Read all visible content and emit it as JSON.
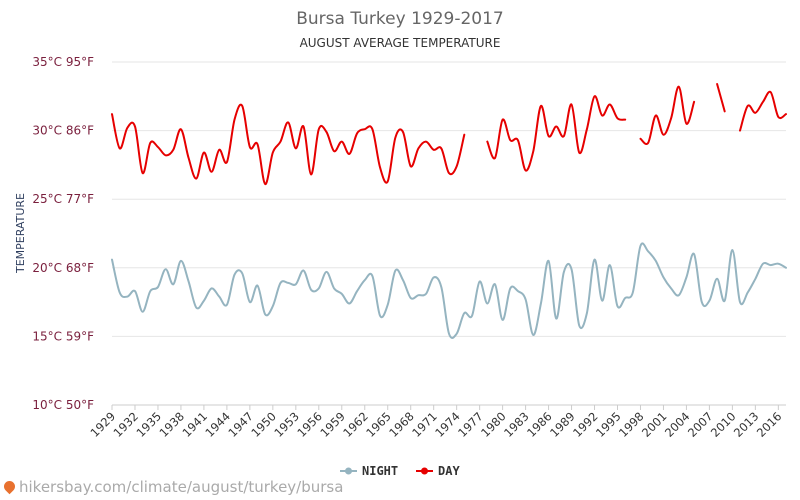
{
  "chart_data": {
    "type": "line",
    "title": "Bursa Turkey 1929-2017",
    "subtitle": "AUGUST AVERAGE TEMPERATURE",
    "ylabel": "TEMPERATURE",
    "ylim": [
      10,
      35
    ],
    "xlim": [
      1929,
      2017
    ],
    "y_ticks": [
      {
        "value": 35,
        "label": "35°C 95°F"
      },
      {
        "value": 30,
        "label": "30°C 86°F"
      },
      {
        "value": 25,
        "label": "25°C 77°F"
      },
      {
        "value": 20,
        "label": "20°C 68°F"
      },
      {
        "value": 15,
        "label": "15°C 59°F"
      },
      {
        "value": 10,
        "label": "10°C 50°F"
      }
    ],
    "x_ticks": [
      1929,
      1932,
      1935,
      1938,
      1941,
      1944,
      1947,
      1950,
      1953,
      1956,
      1959,
      1962,
      1965,
      1968,
      1971,
      1974,
      1977,
      1980,
      1983,
      1986,
      1989,
      1992,
      1995,
      1998,
      2001,
      2004,
      2007,
      2010,
      2013,
      2016
    ],
    "grid": "horizontal",
    "legend_position": "bottom",
    "colors": {
      "night": "#95b4c0",
      "day": "#e60000"
    },
    "series": [
      {
        "name": "NIGHT",
        "color": "#95b4c0",
        "x": [
          1929,
          1930,
          1931,
          1932,
          1933,
          1934,
          1935,
          1936,
          1937,
          1938,
          1939,
          1940,
          1941,
          1942,
          1943,
          1944,
          1945,
          1946,
          1947,
          1948,
          1949,
          1950,
          1951,
          1952,
          1953,
          1954,
          1955,
          1956,
          1957,
          1958,
          1959,
          1960,
          1961,
          1962,
          1963,
          1964,
          1965,
          1966,
          1967,
          1968,
          1969,
          1970,
          1971,
          1972,
          1973,
          1974,
          1975,
          1976,
          1977,
          1978,
          1979,
          1980,
          1981,
          1982,
          1983,
          1984,
          1985,
          1986,
          1987,
          1988,
          1989,
          1990,
          1991,
          1992,
          1993,
          1994,
          1995,
          1996,
          1997,
          1998,
          1999,
          2000,
          2001,
          2002,
          2003,
          2004,
          2005,
          2006,
          2007,
          2008,
          2009,
          2010,
          2011,
          2012,
          2013,
          2014,
          2015,
          2016,
          2017
        ],
        "values": [
          20.6,
          18.2,
          17.9,
          18.3,
          16.8,
          18.3,
          18.6,
          19.9,
          18.8,
          20.5,
          19.0,
          17.1,
          17.6,
          18.5,
          17.9,
          17.3,
          19.5,
          19.6,
          17.5,
          18.7,
          16.6,
          17.2,
          18.9,
          18.9,
          18.8,
          19.8,
          18.4,
          18.5,
          19.7,
          18.5,
          18.1,
          17.4,
          18.3,
          19.1,
          19.4,
          16.5,
          17.3,
          19.8,
          19.1,
          17.8,
          18.0,
          18.1,
          19.3,
          18.6,
          15.2,
          15.2,
          16.7,
          16.5,
          19.0,
          17.4,
          18.8,
          16.2,
          18.5,
          18.3,
          17.7,
          15.1,
          17.4,
          20.5,
          16.3,
          19.7,
          19.9,
          15.8,
          16.7,
          20.6,
          17.6,
          20.2,
          17.2,
          17.8,
          18.2,
          21.6,
          21.2,
          20.5,
          19.3,
          18.5,
          18.0,
          19.3,
          21.0,
          17.5,
          17.6,
          19.2,
          17.6,
          21.3,
          17.5,
          18.2,
          19.2,
          20.3,
          20.2,
          20.3,
          20.0
        ]
      },
      {
        "name": "DAY",
        "color": "#e60000",
        "x": [
          1929,
          1930,
          1931,
          1932,
          1933,
          1934,
          1935,
          1936,
          1937,
          1938,
          1939,
          1940,
          1941,
          1942,
          1943,
          1944,
          1945,
          1946,
          1947,
          1948,
          1949,
          1950,
          1951,
          1952,
          1953,
          1954,
          1955,
          1956,
          1957,
          1958,
          1959,
          1960,
          1961,
          1962,
          1963,
          1964,
          1965,
          1966,
          1967,
          1968,
          1969,
          1970,
          1971,
          1972,
          1973,
          1974,
          1975,
          1976,
          1977,
          1978,
          1979,
          1980,
          1981,
          1982,
          1983,
          1984,
          1985,
          1986,
          1987,
          1988,
          1989,
          1990,
          1991,
          1992,
          1993,
          1994,
          1995,
          1996,
          1997,
          1998,
          1999,
          2000,
          2001,
          2002,
          2003,
          2004,
          2005,
          2006,
          2007,
          2008,
          2009,
          2010,
          2011,
          2012,
          2013,
          2014,
          2015,
          2016,
          2017
        ],
        "values": [
          31.2,
          28.7,
          30.2,
          30.3,
          26.9,
          29.1,
          28.8,
          28.2,
          28.6,
          30.1,
          28.0,
          26.5,
          28.4,
          27.0,
          28.6,
          27.7,
          30.8,
          31.8,
          28.8,
          29.0,
          26.1,
          28.4,
          29.2,
          30.6,
          28.7,
          30.3,
          26.8,
          30.1,
          29.9,
          28.5,
          29.2,
          28.3,
          29.8,
          30.1,
          30.1,
          27.3,
          26.3,
          29.5,
          29.9,
          27.4,
          28.7,
          29.2,
          28.6,
          28.7,
          26.9,
          27.4,
          29.7,
          null,
          null,
          29.2,
          28.0,
          30.8,
          29.3,
          29.3,
          27.1,
          28.5,
          31.8,
          29.6,
          30.3,
          29.6,
          31.9,
          28.4,
          30.1,
          32.5,
          31.1,
          31.9,
          30.9,
          30.8,
          null,
          29.4,
          29.1,
          31.1,
          29.7,
          30.9,
          33.2,
          30.5,
          32.1,
          null,
          null,
          33.4,
          31.4,
          null,
          30.0,
          31.8,
          31.3,
          32.1,
          32.8,
          31.0,
          31.2
        ]
      }
    ]
  },
  "source": {
    "text": "hikersbay.com/climate/august/turkey/bursa"
  }
}
